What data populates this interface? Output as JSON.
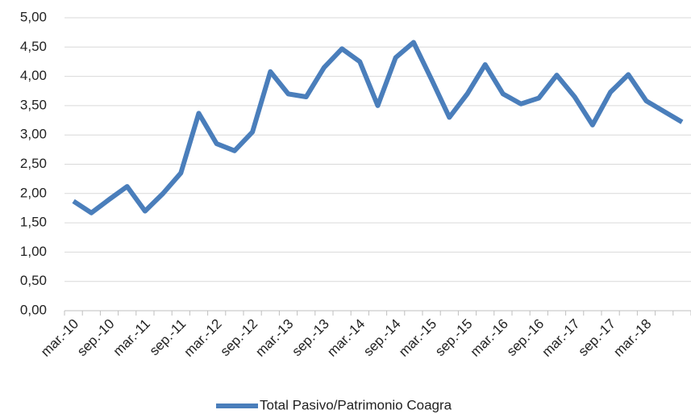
{
  "chart_data": {
    "type": "line",
    "categories": [
      "mar.-10",
      null,
      "sep.-10",
      null,
      "mar.-11",
      null,
      "sep.-11",
      null,
      "mar.-12",
      null,
      "sep.-12",
      null,
      "mar.-13",
      null,
      "sep.-13",
      null,
      "mar.-14",
      null,
      "sep.-14",
      null,
      "mar.-15",
      null,
      "sep.-15",
      null,
      "mar.-16",
      null,
      "sep.-16",
      null,
      "mar.-17",
      null,
      "sep.-17",
      null,
      "mar.-18",
      null,
      null
    ],
    "series": [
      {
        "name": "Total Pasivo/Patrimonio Coagra",
        "color": "#4a7ebb",
        "values": [
          1.87,
          1.67,
          1.9,
          2.12,
          1.7,
          2.0,
          2.35,
          3.37,
          2.85,
          2.73,
          3.05,
          4.08,
          3.7,
          3.65,
          4.15,
          4.47,
          4.25,
          3.5,
          4.32,
          4.58,
          3.95,
          3.3,
          3.7,
          4.2,
          3.7,
          3.53,
          3.63,
          4.02,
          3.65,
          3.17,
          3.73,
          4.03,
          3.58,
          3.4,
          3.22
        ]
      }
    ],
    "ylim": [
      0,
      5
    ],
    "yticks": [
      {
        "value": 0,
        "label": "0,00"
      },
      {
        "value": 0.5,
        "label": "0,50"
      },
      {
        "value": 1,
        "label": "1,00"
      },
      {
        "value": 1.5,
        "label": "1,50"
      },
      {
        "value": 2,
        "label": "2,00"
      },
      {
        "value": 2.5,
        "label": "2,50"
      },
      {
        "value": 3,
        "label": "3,00"
      },
      {
        "value": 3.5,
        "label": "3,50"
      },
      {
        "value": 4,
        "label": "4,00"
      },
      {
        "value": 4.5,
        "label": "4,50"
      },
      {
        "value": 5,
        "label": "5,00"
      }
    ],
    "grid": true,
    "legend": "bottom"
  }
}
